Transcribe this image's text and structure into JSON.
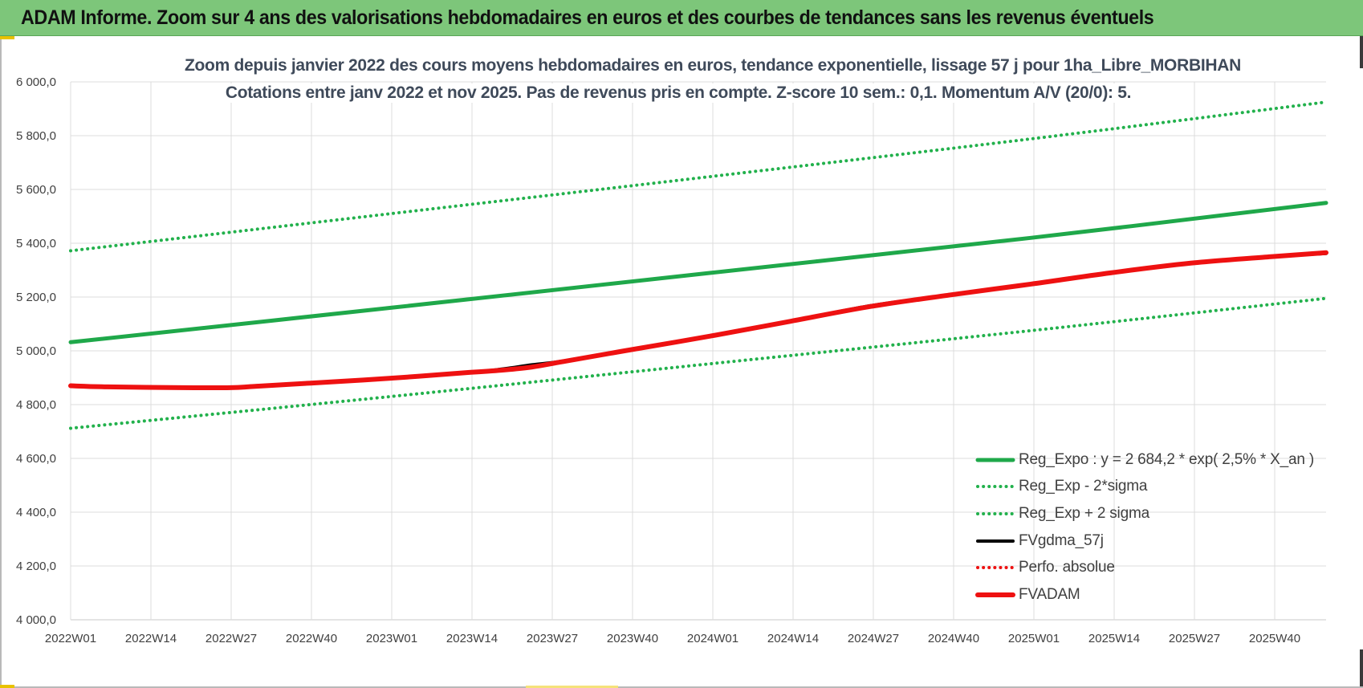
{
  "banner": {
    "title": "ADAM Informe. Zoom sur 4 ans des valorisations hebdomadaires en euros et des courbes de tendances sans les revenus éventuels"
  },
  "colors": {
    "banner": "#7dc67a",
    "trend_green": "#1fa84a",
    "band_green": "#22b14c",
    "black": "#000000",
    "red": "#ee1111"
  },
  "chart_data": {
    "type": "line",
    "title_line1": "Zoom depuis janvier 2022 des cours moyens hebdomadaires en euros, tendance exponentielle, lissage 57 j pour 1ha_Libre_MORBIHAN",
    "title_line2": "Cotations entre janv 2022 et nov 2025. Pas de revenus pris en compte. Z-score 10 sem.: 0,1. Momentum A/V (20/0): 5.",
    "xlabel": "",
    "ylabel": "",
    "ylim": [
      4000,
      6000
    ],
    "y_ticks": [
      "4 000,0",
      "4 200,0",
      "4 400,0",
      "4 600,0",
      "4 800,0",
      "5 000,0",
      "5 200,0",
      "5 400,0",
      "5 600,0",
      "5 800,0",
      "6 000,0"
    ],
    "x_ticks": [
      "2022W01",
      "2022W14",
      "2022W27",
      "2022W40",
      "2023W01",
      "2023W14",
      "2023W27",
      "2023W40",
      "2024W01",
      "2024W14",
      "2024W27",
      "2024W40",
      "2025W01",
      "2025W14",
      "2025W27",
      "2025W40"
    ],
    "x_range_weeks": [
      0,
      204
    ],
    "grid": true,
    "legend_position": "bottom-right",
    "series": [
      {
        "name": "Reg_Expo : y = 2 684,2 * exp( 2,5% *  X_an )",
        "style": "solid",
        "color": "#1fa84a",
        "points": [
          [
            0,
            5032
          ],
          [
            52,
            5160
          ],
          [
            104,
            5290
          ],
          [
            156,
            5420
          ],
          [
            204,
            5550
          ]
        ]
      },
      {
        "name": "Reg_Exp - 2*sigma",
        "style": "dotted",
        "color": "#22b14c",
        "points": [
          [
            0,
            4712
          ],
          [
            52,
            4830
          ],
          [
            104,
            4952
          ],
          [
            156,
            5075
          ],
          [
            204,
            5195
          ]
        ]
      },
      {
        "name": "Reg_Exp + 2 sigma",
        "style": "dotted",
        "color": "#22b14c",
        "points": [
          [
            0,
            5372
          ],
          [
            52,
            5510
          ],
          [
            104,
            5648
          ],
          [
            156,
            5788
          ],
          [
            204,
            5925
          ]
        ]
      },
      {
        "name": "FVgdma_57j",
        "style": "solid",
        "color": "#000000",
        "points": [
          [
            0,
            4870
          ],
          [
            6,
            4866
          ],
          [
            18,
            4864
          ],
          [
            26,
            4864
          ],
          [
            30,
            4870
          ],
          [
            39,
            4880
          ],
          [
            52,
            4898
          ],
          [
            65,
            4920
          ],
          [
            70,
            4932
          ],
          [
            75,
            4948
          ],
          [
            80,
            4962
          ],
          [
            90,
            5000
          ],
          [
            104,
            5055
          ],
          [
            117,
            5110
          ],
          [
            130,
            5168
          ],
          [
            143,
            5208
          ],
          [
            156,
            5248
          ],
          [
            169,
            5290
          ],
          [
            182,
            5326
          ],
          [
            195,
            5350
          ],
          [
            204,
            5362
          ]
        ]
      },
      {
        "name": "Perfo. absolue",
        "style": "dotted",
        "color": "#ee1111",
        "points": []
      },
      {
        "name": "FVADAM",
        "style": "solid",
        "color": "#ee1111",
        "points": [
          [
            0,
            4870
          ],
          [
            6,
            4866
          ],
          [
            18,
            4863
          ],
          [
            26,
            4863
          ],
          [
            30,
            4868
          ],
          [
            39,
            4880
          ],
          [
            52,
            4898
          ],
          [
            65,
            4920
          ],
          [
            70,
            4928
          ],
          [
            75,
            4940
          ],
          [
            80,
            4960
          ],
          [
            90,
            5000
          ],
          [
            104,
            5055
          ],
          [
            117,
            5110
          ],
          [
            130,
            5165
          ],
          [
            143,
            5208
          ],
          [
            156,
            5248
          ],
          [
            169,
            5290
          ],
          [
            182,
            5326
          ],
          [
            195,
            5350
          ],
          [
            204,
            5365
          ]
        ]
      }
    ]
  }
}
